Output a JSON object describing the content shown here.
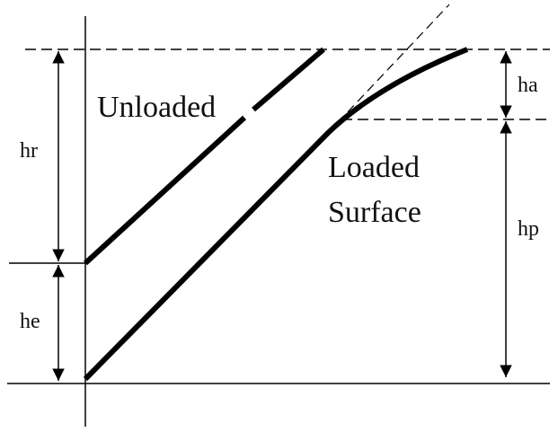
{
  "labels": {
    "unloaded": "Unloaded",
    "loaded": "Loaded",
    "surface": "Surface",
    "hr": "hr",
    "he": "he",
    "ha": "ha",
    "hp": "hp"
  }
}
